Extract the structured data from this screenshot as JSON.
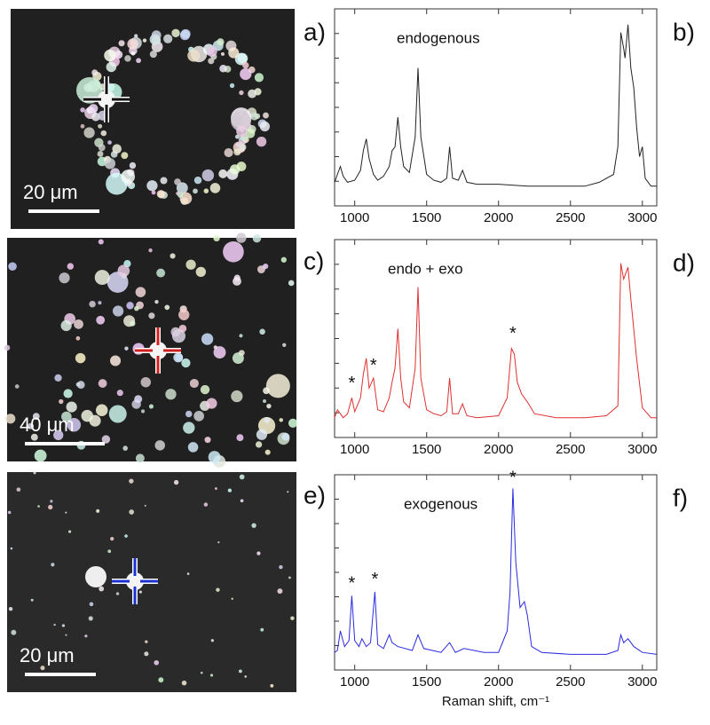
{
  "images": [
    {
      "label": "a)",
      "scale_bar": "20 μm"
    },
    {
      "label": "c)",
      "scale_bar": "40 μm"
    },
    {
      "label": "e)",
      "scale_bar": "20 μm"
    }
  ],
  "chart_data": [
    {
      "type": "line",
      "label": "b)",
      "annotation": "endogenous",
      "x": [
        860,
        880,
        900,
        920,
        950,
        1000,
        1040,
        1060,
        1080,
        1100,
        1130,
        1160,
        1200,
        1240,
        1260,
        1280,
        1300,
        1320,
        1340,
        1380,
        1420,
        1440,
        1460,
        1500,
        1550,
        1600,
        1640,
        1660,
        1680,
        1720,
        1750,
        1780,
        1850,
        2000,
        2200,
        2400,
        2600,
        2700,
        2750,
        2800,
        2830,
        2850,
        2870,
        2880,
        2900,
        2920,
        2940,
        2960,
        2980,
        3000,
        3020,
        3060,
        3100
      ],
      "series": [
        {
          "color": "#222222",
          "values": [
            12,
            16,
            20,
            15,
            12,
            13,
            18,
            28,
            34,
            24,
            16,
            13,
            15,
            20,
            28,
            30,
            45,
            30,
            20,
            17,
            35,
            70,
            35,
            16,
            13,
            12,
            14,
            30,
            14,
            13,
            18,
            12,
            11,
            11,
            10,
            10,
            10,
            12,
            14,
            16,
            30,
            88,
            80,
            75,
            92,
            70,
            60,
            40,
            25,
            30,
            14,
            10,
            10
          ]
        }
      ],
      "xlim": [
        860,
        3100
      ],
      "ylim": [
        0,
        100
      ],
      "xticks": [
        1000,
        1500,
        2000,
        2500,
        3000
      ]
    },
    {
      "type": "line",
      "label": "d)",
      "annotation": "endo + exo",
      "x": [
        860,
        880,
        900,
        920,
        950,
        980,
        1000,
        1040,
        1060,
        1080,
        1100,
        1130,
        1160,
        1200,
        1240,
        1260,
        1280,
        1300,
        1320,
        1340,
        1380,
        1420,
        1440,
        1460,
        1500,
        1550,
        1600,
        1640,
        1660,
        1680,
        1720,
        1750,
        1780,
        1850,
        2000,
        2060,
        2090,
        2110,
        2130,
        2160,
        2200,
        2250,
        2400,
        2600,
        2750,
        2830,
        2850,
        2870,
        2900,
        2920,
        2960,
        3000,
        3060,
        3100
      ],
      "series": [
        {
          "color": "#e03030",
          "values": [
            10,
            14,
            12,
            10,
            12,
            20,
            13,
            20,
            32,
            40,
            25,
            30,
            14,
            13,
            20,
            28,
            35,
            55,
            30,
            18,
            15,
            35,
            76,
            30,
            14,
            12,
            11,
            13,
            30,
            12,
            12,
            17,
            11,
            10,
            11,
            20,
            45,
            42,
            28,
            22,
            18,
            12,
            10,
            10,
            11,
            16,
            88,
            80,
            86,
            70,
            40,
            15,
            10,
            10
          ]
        }
      ],
      "stars": [
        {
          "text": "*",
          "x": 980,
          "y": 28
        },
        {
          "text": "*",
          "x": 1130,
          "y": 37
        },
        {
          "text": "*",
          "x": 2100,
          "y": 53
        }
      ],
      "xlim": [
        860,
        3100
      ],
      "ylim": [
        0,
        100
      ],
      "xticks": [
        1000,
        1500,
        2000,
        2500,
        3000
      ]
    },
    {
      "type": "line",
      "label": "f)",
      "annotation": "exogenous",
      "xlabel": "Raman shift, cm⁻¹",
      "x": [
        860,
        880,
        900,
        930,
        960,
        980,
        1000,
        1030,
        1050,
        1080,
        1110,
        1140,
        1160,
        1200,
        1240,
        1260,
        1300,
        1400,
        1440,
        1480,
        1600,
        1660,
        1700,
        1760,
        1900,
        2000,
        2060,
        2080,
        2100,
        2120,
        2150,
        2180,
        2200,
        2230,
        2300,
        2500,
        2750,
        2830,
        2850,
        2870,
        2900,
        2940,
        3000,
        3100
      ],
      "series": [
        {
          "color": "#2a2ae0",
          "values": [
            9,
            10,
            20,
            12,
            15,
            38,
            15,
            12,
            16,
            12,
            14,
            40,
            13,
            11,
            18,
            14,
            12,
            10,
            18,
            11,
            9,
            14,
            9,
            11,
            9,
            9,
            20,
            40,
            93,
            55,
            32,
            35,
            28,
            12,
            9,
            8,
            8,
            10,
            18,
            14,
            16,
            12,
            9,
            8
          ]
        }
      ],
      "stars": [
        {
          "text": "*",
          "x": 980,
          "y": 45
        },
        {
          "text": "*",
          "x": 1140,
          "y": 47
        },
        {
          "text": "*",
          "x": 2100,
          "y": 99
        }
      ],
      "xlim": [
        860,
        3100
      ],
      "ylim": [
        0,
        100
      ],
      "xticks": [
        1000,
        1500,
        2000,
        2500,
        3000
      ]
    }
  ]
}
